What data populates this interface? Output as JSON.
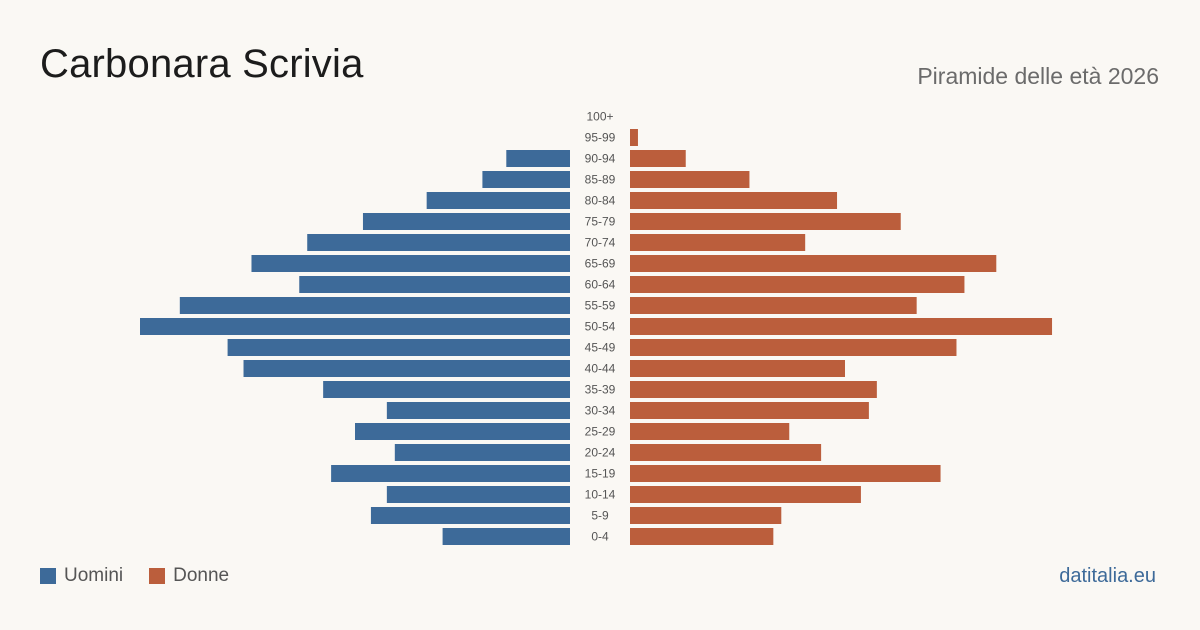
{
  "title": "Carbonara Scrivia",
  "subtitle": "Piramide delle età 2026",
  "source": "datitalia.eu",
  "colors": {
    "male": "#3d6a99",
    "female": "#bb5e3c",
    "background": "#faf8f4"
  },
  "legend": [
    {
      "key": "male",
      "label": "Uomini"
    },
    {
      "key": "female",
      "label": "Donne"
    }
  ],
  "chart_data": {
    "type": "bar",
    "orientation": "horizontal-pyramid",
    "categories": [
      "100+",
      "95-99",
      "90-94",
      "85-89",
      "80-84",
      "75-79",
      "70-74",
      "65-69",
      "60-64",
      "55-59",
      "50-54",
      "45-49",
      "40-44",
      "35-39",
      "30-34",
      "25-29",
      "20-24",
      "15-19",
      "10-14",
      "5-9",
      "0-4"
    ],
    "series": [
      {
        "name": "Uomini",
        "values": [
          0,
          0,
          8,
          11,
          18,
          26,
          33,
          40,
          34,
          49,
          54,
          43,
          41,
          31,
          23,
          27,
          22,
          30,
          23,
          25,
          16
        ]
      },
      {
        "name": "Donne",
        "values": [
          0,
          1,
          7,
          15,
          26,
          34,
          22,
          46,
          42,
          36,
          53,
          41,
          27,
          31,
          30,
          20,
          24,
          39,
          29,
          19,
          18
        ]
      }
    ],
    "xlim": [
      0,
      54
    ],
    "grid": false,
    "legend_position": "bottom-left"
  }
}
